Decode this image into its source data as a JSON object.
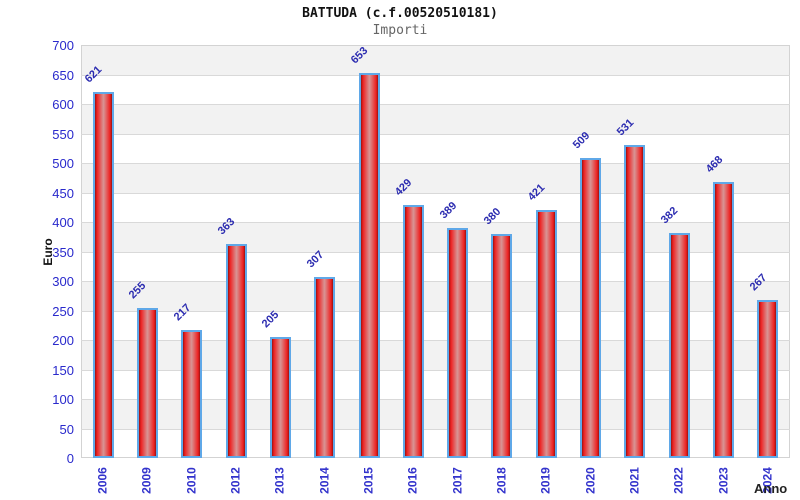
{
  "header": {
    "title": "BATTUDA (c.f.00520510181)",
    "subtitle": "Importi"
  },
  "chart_data": {
    "type": "bar",
    "title": "BATTUDA (c.f.00520510181)",
    "subtitle": "Importi",
    "xlabel": "Anno",
    "ylabel": "Euro",
    "categories": [
      "2006",
      "2009",
      "2010",
      "2012",
      "2013",
      "2014",
      "2015",
      "2016",
      "2017",
      "2018",
      "2019",
      "2020",
      "2021",
      "2022",
      "2023",
      "2024"
    ],
    "values": [
      621,
      255,
      217,
      363,
      205,
      307,
      653,
      429,
      389,
      380,
      421,
      509,
      531,
      382,
      468,
      267
    ],
    "ylim": [
      0,
      700
    ],
    "ytick_step": 50,
    "grid": true,
    "legend": "none",
    "band_fill": "alternating horizontal stripes per 50 units",
    "colors": {
      "bar_fill": "#ee2222",
      "bar_border": "#5fa8e8",
      "ytick_label": "#2929cc",
      "xtick_label": "#3333cc",
      "value_label": "#2b2bb0",
      "stripe": "#f2f2f2",
      "gridline": "#d9d9d9",
      "title": "#111111",
      "subtitle": "#666666"
    }
  }
}
